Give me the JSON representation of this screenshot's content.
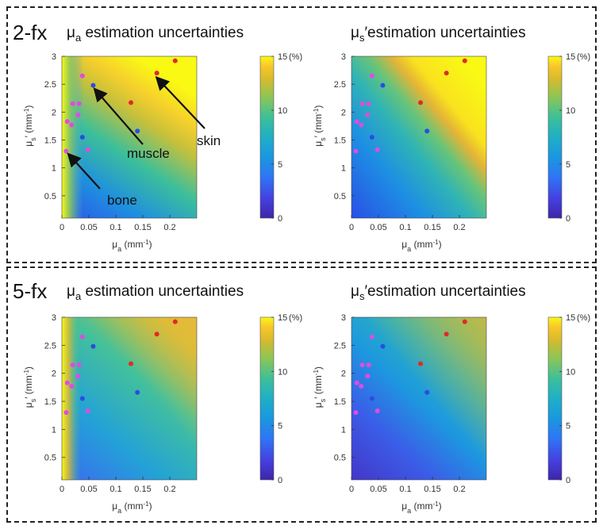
{
  "panels": [
    {
      "label": "2-fx"
    },
    {
      "label": "5-fx"
    }
  ],
  "annotations": {
    "muscle": "muscle",
    "skin": "skin",
    "bone": "bone"
  },
  "chart_data": [
    {
      "id": "2fx-mua",
      "type": "heatmap",
      "title": {
        "sym": "μ",
        "sub": "a",
        "text": " estimation uncertainties"
      },
      "xlabel": {
        "sym": "μ",
        "sub": "a",
        "unit": " (mm",
        "sup": "-1",
        "close": ")"
      },
      "ylabel": {
        "sym": "μ",
        "sub": "s",
        "prime": "′",
        "unit": " (mm",
        "sup": "-1",
        "close": ")"
      },
      "xlim": [
        0,
        0.25
      ],
      "ylim": [
        0.1,
        3.0
      ],
      "xticks": [
        "0",
        "0.05",
        "0.1",
        "0.15",
        "0.2"
      ],
      "yticks": [
        "0.5",
        "1",
        "1.5",
        "2",
        "2.5",
        "3"
      ],
      "colorbar": {
        "min": 0,
        "max": 15,
        "ticks": [
          "0",
          "5",
          "10",
          "15"
        ],
        "unit": "(%)"
      }
    },
    {
      "id": "2fx-mus",
      "type": "heatmap",
      "title": {
        "sym": "μ",
        "sub": "s",
        "prime": "′",
        "text": "estimation uncertainties"
      },
      "xlabel": {
        "sym": "μ",
        "sub": "a",
        "unit": " (mm",
        "sup": "-1",
        "close": ")"
      },
      "ylabel": {
        "sym": "μ",
        "sub": "s",
        "prime": "′",
        "unit": " (mm",
        "sup": "-1",
        "close": ")"
      },
      "xlim": [
        0,
        0.25
      ],
      "ylim": [
        0.1,
        3.0
      ],
      "xticks": [
        "0",
        "0.05",
        "0.1",
        "0.15",
        "0.2"
      ],
      "yticks": [
        "0.5",
        "1",
        "1.5",
        "2",
        "2.5",
        "3"
      ],
      "colorbar": {
        "min": 0,
        "max": 15,
        "ticks": [
          "0",
          "5",
          "10",
          "15"
        ],
        "unit": "(%)"
      }
    },
    {
      "id": "5fx-mua",
      "type": "heatmap",
      "title": {
        "sym": "μ",
        "sub": "a",
        "text": " estimation uncertainties"
      },
      "xlabel": {
        "sym": "μ",
        "sub": "a",
        "unit": " (mm",
        "sup": "-1",
        "close": ")"
      },
      "ylabel": {
        "sym": "μ",
        "sub": "s",
        "prime": "′",
        "unit": " (mm",
        "sup": "-1",
        "close": ")"
      },
      "xlim": [
        0,
        0.25
      ],
      "ylim": [
        0.1,
        3.0
      ],
      "xticks": [
        "0",
        "0.05",
        "0.1",
        "0.15",
        "0.2"
      ],
      "yticks": [
        "0.5",
        "1",
        "1.5",
        "2",
        "2.5",
        "3"
      ],
      "colorbar": {
        "min": 0,
        "max": 15,
        "ticks": [
          "0",
          "5",
          "10",
          "15"
        ],
        "unit": "(%)"
      }
    },
    {
      "id": "5fx-mus",
      "type": "heatmap",
      "title": {
        "sym": "μ",
        "sub": "s",
        "prime": "′",
        "text": "estimation uncertainties"
      },
      "xlabel": {
        "sym": "μ",
        "sub": "a",
        "unit": " (mm",
        "sup": "-1",
        "close": ")"
      },
      "ylabel": {
        "sym": "μ",
        "sub": "s",
        "prime": "′",
        "unit": " (mm",
        "sup": "-1",
        "close": ")"
      },
      "xlim": [
        0,
        0.25
      ],
      "ylim": [
        0.1,
        3.0
      ],
      "xticks": [
        "0",
        "0.05",
        "0.1",
        "0.15",
        "0.2"
      ],
      "yticks": [
        "0.5",
        "1",
        "1.5",
        "2",
        "2.5",
        "3"
      ],
      "colorbar": {
        "min": 0,
        "max": 15,
        "ticks": [
          "0",
          "5",
          "10",
          "15"
        ],
        "unit": "(%)"
      }
    }
  ],
  "tissue_points": {
    "bone": {
      "color": "#e04be0",
      "points": [
        [
          0.008,
          1.3
        ],
        [
          0.01,
          1.83
        ],
        [
          0.018,
          1.77
        ],
        [
          0.02,
          2.15
        ],
        [
          0.03,
          1.95
        ],
        [
          0.032,
          2.15
        ],
        [
          0.038,
          2.65
        ],
        [
          0.048,
          1.33
        ]
      ]
    },
    "muscle": {
      "color": "#2a4de0",
      "points": [
        [
          0.038,
          1.55
        ],
        [
          0.058,
          2.48
        ],
        [
          0.14,
          1.66
        ]
      ]
    },
    "skin": {
      "color": "#e02a2a",
      "points": [
        [
          0.128,
          2.17
        ],
        [
          0.176,
          2.7
        ],
        [
          0.21,
          2.92
        ]
      ]
    }
  },
  "colormap": "parula"
}
